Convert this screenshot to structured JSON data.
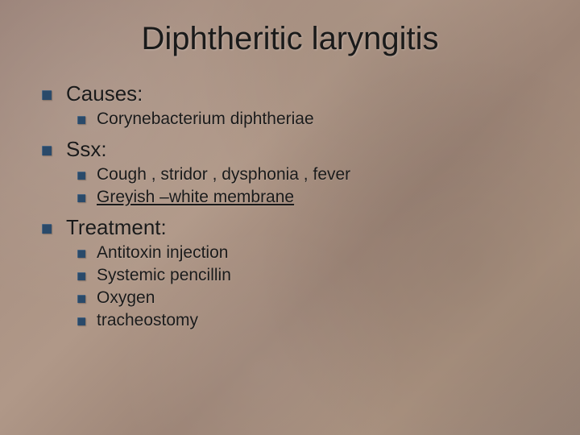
{
  "slide": {
    "title": "Diphtheritic laryngitis",
    "background_base": "#9e8a7c",
    "bullet_color": "#2a4a6a",
    "text_color": "#1a1a1a",
    "title_fontsize": 40,
    "level1_fontsize": 26,
    "level2_fontsize": 21,
    "sections": [
      {
        "heading": "Causes:",
        "items": [
          {
            "text": "Corynebacterium diphtheriae",
            "underline": false
          }
        ]
      },
      {
        "heading": "Ssx:",
        "items": [
          {
            "text": "Cough , stridor , dysphonia , fever",
            "underline": false
          },
          {
            "text": "Greyish –white membrane",
            "underline": true
          }
        ]
      },
      {
        "heading": "Treatment:",
        "items": [
          {
            "text": "Antitoxin injection",
            "underline": false
          },
          {
            "text": "Systemic pencillin",
            "underline": false
          },
          {
            "text": "Oxygen",
            "underline": false
          },
          {
            "text": "tracheostomy",
            "underline": false
          }
        ]
      }
    ]
  }
}
